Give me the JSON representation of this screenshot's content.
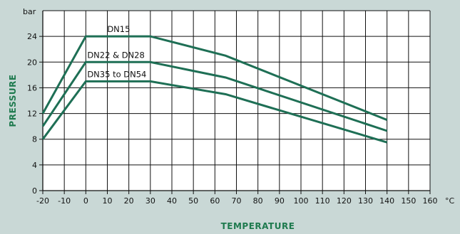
{
  "chart_data": {
    "type": "line",
    "xlabel": "TEMPERATURE",
    "ylabel": "PRESSURE",
    "x_unit": "°C",
    "y_unit": "bar",
    "xlim": [
      -20,
      160
    ],
    "ylim": [
      0,
      28
    ],
    "xticks": [
      -20,
      -10,
      0,
      10,
      20,
      30,
      40,
      50,
      60,
      70,
      80,
      90,
      100,
      110,
      120,
      130,
      140,
      150,
      160
    ],
    "yticks": [
      0,
      4,
      8,
      12,
      16,
      20,
      24
    ],
    "grid": true,
    "colors": {
      "line": "#1e6f55",
      "axis_title": "#1e7a4e",
      "background": "#c9d8d6",
      "plot": "#ffffff"
    },
    "series": [
      {
        "name": "DN15",
        "points": [
          [
            -20,
            12
          ],
          [
            0,
            24
          ],
          [
            30,
            24
          ],
          [
            65,
            21
          ],
          [
            140,
            11
          ]
        ]
      },
      {
        "name": "DN22 & DN28",
        "points": [
          [
            -20,
            10
          ],
          [
            0,
            20
          ],
          [
            30,
            20
          ],
          [
            65,
            17.6
          ],
          [
            140,
            9.3
          ]
        ]
      },
      {
        "name": "DN35 to DN54",
        "points": [
          [
            -20,
            8
          ],
          [
            0,
            17
          ],
          [
            30,
            17
          ],
          [
            65,
            15
          ],
          [
            140,
            7.5
          ]
        ]
      }
    ]
  }
}
